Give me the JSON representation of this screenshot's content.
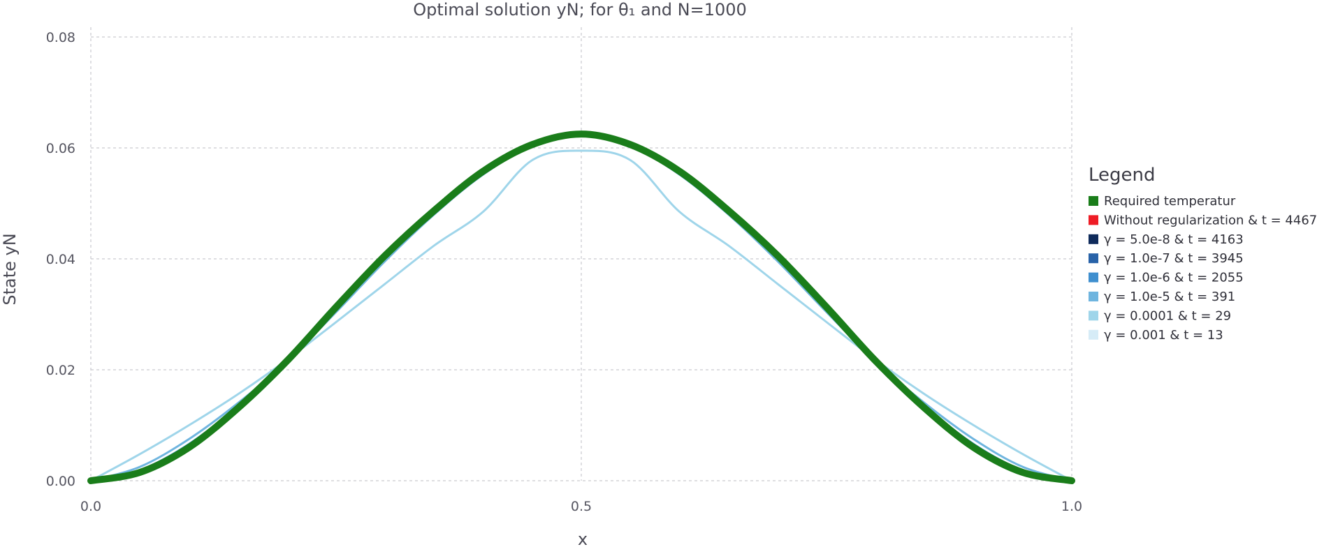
{
  "chart_data": {
    "type": "line",
    "title": "Optimal solution yN; for θ₁ and N=1000",
    "xlabel": "x",
    "ylabel": "State yN",
    "xlim": [
      0.0,
      1.0
    ],
    "ylim": [
      0.0,
      0.08
    ],
    "x_ticks": [
      "0.0",
      "0.5",
      "1.0"
    ],
    "x_tick_values": [
      0.0,
      0.5,
      1.0
    ],
    "y_ticks": [
      "0.00",
      "0.02",
      "0.04",
      "0.06",
      "0.08"
    ],
    "y_tick_values": [
      0.0,
      0.02,
      0.04,
      0.06,
      0.08
    ],
    "grid": true,
    "legend_title": "Legend",
    "legend_position": "right",
    "x": [
      0.0,
      0.05,
      0.1,
      0.15,
      0.2,
      0.25,
      0.3,
      0.35,
      0.4,
      0.45,
      0.5,
      0.55,
      0.6,
      0.65,
      0.7,
      0.75,
      0.8,
      0.85,
      0.9,
      0.95,
      1.0
    ],
    "series": [
      {
        "name": "γ = 0.001 & t = 13",
        "color": "#d6ecf7",
        "width": 2.5,
        "values": [
          0.0,
          0.0017,
          0.0062,
          0.0133,
          0.0217,
          0.0313,
          0.0406,
          0.0486,
          0.0557,
          0.0605,
          0.0625,
          0.0605,
          0.0557,
          0.0486,
          0.0406,
          0.0313,
          0.0217,
          0.0133,
          0.0062,
          0.0017,
          0.0
        ]
      },
      {
        "name": "γ = 0.0001 & t = 29",
        "color": "#9fd5ea",
        "width": 3,
        "values": [
          0.0,
          0.0048,
          0.01,
          0.0156,
          0.0218,
          0.0286,
          0.0355,
          0.0424,
          0.0485,
          0.0578,
          0.0595,
          0.0578,
          0.0485,
          0.0424,
          0.0355,
          0.0286,
          0.0218,
          0.0156,
          0.01,
          0.0048,
          0.0
        ]
      },
      {
        "name": "γ = 1.0e-5 & t = 391",
        "color": "#6fb5df",
        "width": 3,
        "values": [
          0.0,
          0.0025,
          0.0075,
          0.014,
          0.0215,
          0.0304,
          0.0396,
          0.048,
          0.0552,
          0.0603,
          0.0622,
          0.0603,
          0.0552,
          0.048,
          0.0396,
          0.0304,
          0.0215,
          0.014,
          0.0075,
          0.0025,
          0.0
        ]
      },
      {
        "name": "γ = 1.0e-6 & t = 2055",
        "color": "#3f8fcf",
        "width": 3,
        "values": [
          0.0,
          0.0019,
          0.0066,
          0.0135,
          0.0217,
          0.0311,
          0.0404,
          0.0485,
          0.0556,
          0.0605,
          0.0624,
          0.0605,
          0.0556,
          0.0485,
          0.0404,
          0.0311,
          0.0217,
          0.0135,
          0.0066,
          0.0019,
          0.0
        ]
      },
      {
        "name": "γ = 1.0e-7 & t = 3945",
        "color": "#2862a8",
        "width": 3,
        "values": [
          0.0,
          0.0017,
          0.0062,
          0.0133,
          0.0217,
          0.0313,
          0.0406,
          0.0486,
          0.0557,
          0.0605,
          0.0625,
          0.0605,
          0.0557,
          0.0486,
          0.0406,
          0.0313,
          0.0217,
          0.0133,
          0.0062,
          0.0017,
          0.0
        ]
      },
      {
        "name": "γ = 5.0e-8 & t = 4163",
        "color": "#0f2b5b",
        "width": 3,
        "values": [
          0.0,
          0.0017,
          0.0062,
          0.0133,
          0.0217,
          0.0313,
          0.0406,
          0.0486,
          0.0557,
          0.0605,
          0.0625,
          0.0605,
          0.0557,
          0.0486,
          0.0406,
          0.0313,
          0.0217,
          0.0133,
          0.0062,
          0.0017,
          0.0
        ]
      },
      {
        "name": "Without regularization & t = 4467",
        "color": "#ee1c25",
        "width": 3,
        "values": [
          0.0,
          0.0017,
          0.0062,
          0.0133,
          0.0217,
          0.0313,
          0.0406,
          0.0486,
          0.0557,
          0.0605,
          0.0625,
          0.0605,
          0.0557,
          0.0486,
          0.0406,
          0.0313,
          0.0217,
          0.0133,
          0.0062,
          0.0017,
          0.0
        ]
      },
      {
        "name": "Required temperatur",
        "color": "#1a7d1a",
        "width": 10,
        "values": [
          0.0,
          0.0015,
          0.006,
          0.0131,
          0.0216,
          0.0313,
          0.0406,
          0.0487,
          0.0558,
          0.0606,
          0.0625,
          0.0606,
          0.0558,
          0.0487,
          0.0406,
          0.0313,
          0.0216,
          0.0131,
          0.006,
          0.0015,
          0.0
        ]
      }
    ],
    "legend_order": [
      "Required temperatur",
      "Without regularization & t = 4467",
      "γ = 5.0e-8 & t = 4163",
      "γ = 1.0e-7 & t = 3945",
      "γ = 1.0e-6 & t = 2055",
      "γ = 1.0e-5 & t = 391",
      "γ = 0.0001 & t = 29",
      "γ = 0.001 & t = 13"
    ]
  }
}
